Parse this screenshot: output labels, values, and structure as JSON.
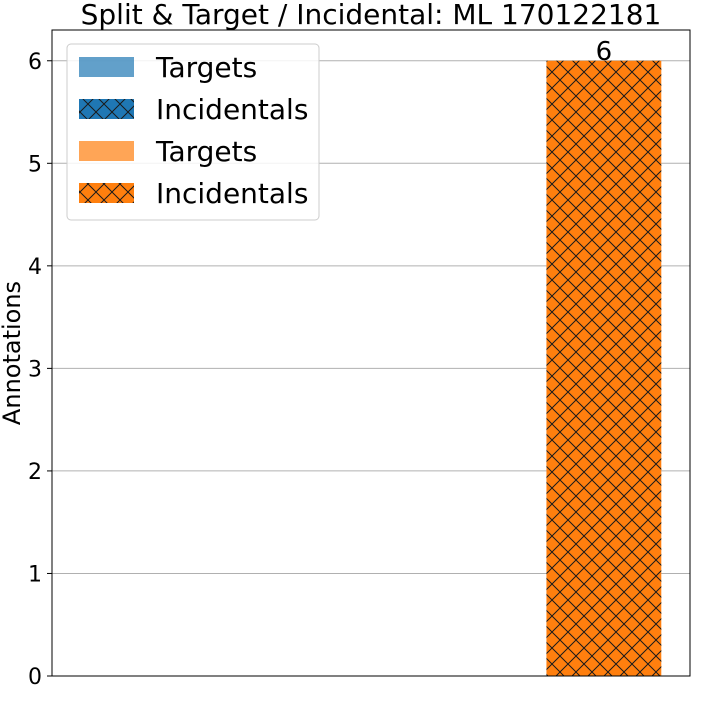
{
  "chart_data": {
    "type": "bar",
    "title": "Split & Target / Incidental: ML 170122181",
    "ylabel": "Annotations",
    "xlabel": "",
    "ylim": [
      0,
      6.3
    ],
    "yticks": [
      0,
      1,
      2,
      3,
      4,
      5,
      6
    ],
    "grid": "y",
    "legend_placement": "top-left",
    "categories": [
      "",
      ""
    ],
    "series": [
      {
        "name": "Targets",
        "color": "#1f77b4",
        "alpha": 0.7,
        "hatch": "none",
        "values": [
          0,
          0
        ]
      },
      {
        "name": "Incidentals",
        "color": "#1f77b4",
        "alpha": 1.0,
        "hatch": "cross",
        "values": [
          0,
          0
        ]
      },
      {
        "name": "Targets",
        "color": "#ff7f0e",
        "alpha": 0.7,
        "hatch": "none",
        "values": [
          0,
          0
        ]
      },
      {
        "name": "Incidentals",
        "color": "#ff7f0e",
        "alpha": 1.0,
        "hatch": "cross",
        "values": [
          0,
          6
        ]
      }
    ],
    "data_labels": [
      {
        "category_index": 1,
        "text": "6"
      }
    ]
  }
}
